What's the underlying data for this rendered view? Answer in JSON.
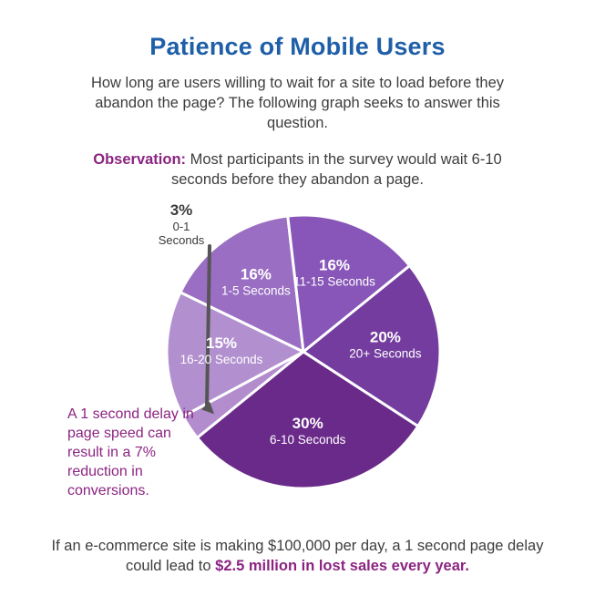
{
  "header": {
    "title": "Patience of Mobile Users",
    "subtitle": "How long are users willing to wait for a site to load before they abandon the page? The following graph seeks to answer this question."
  },
  "observation": {
    "lead": "Observation:",
    "text": " Most participants in the survey would wait 6-10 seconds before they abandon a page."
  },
  "side_note": "A 1 second delay in page speed can result in a 7% reduction in conversions.",
  "footer": {
    "text": "If an e-commerce site is making $100,000 per day, a 1 second page delay could lead to ",
    "highlight": "$2.5 million in lost sales every year."
  },
  "colors": {
    "title": "#1e5fa8",
    "accent": "#8b2482",
    "slice_border": "#ffffff",
    "arrow": "#555555"
  },
  "chart_data": {
    "type": "pie",
    "title": "Patience of Mobile Users",
    "slices": [
      {
        "percent_label": "3%",
        "category": "0-1 Seconds",
        "value": 3,
        "color": "#b28ccd",
        "external_label": true
      },
      {
        "percent_label": "15%",
        "category": "16-20 Seconds",
        "value": 15,
        "color": "#b290cf"
      },
      {
        "percent_label": "16%",
        "category": "1-5 Seconds",
        "value": 16,
        "color": "#9a6ec2"
      },
      {
        "percent_label": "16%",
        "category": "11-15 Seconds",
        "value": 16,
        "color": "#8856b8"
      },
      {
        "percent_label": "20%",
        "category": "20+ Seconds",
        "value": 20,
        "color": "#733c9e"
      },
      {
        "percent_label": "30%",
        "category": "6-10 Seconds",
        "value": 30,
        "color": "#6a2a8a"
      }
    ]
  }
}
